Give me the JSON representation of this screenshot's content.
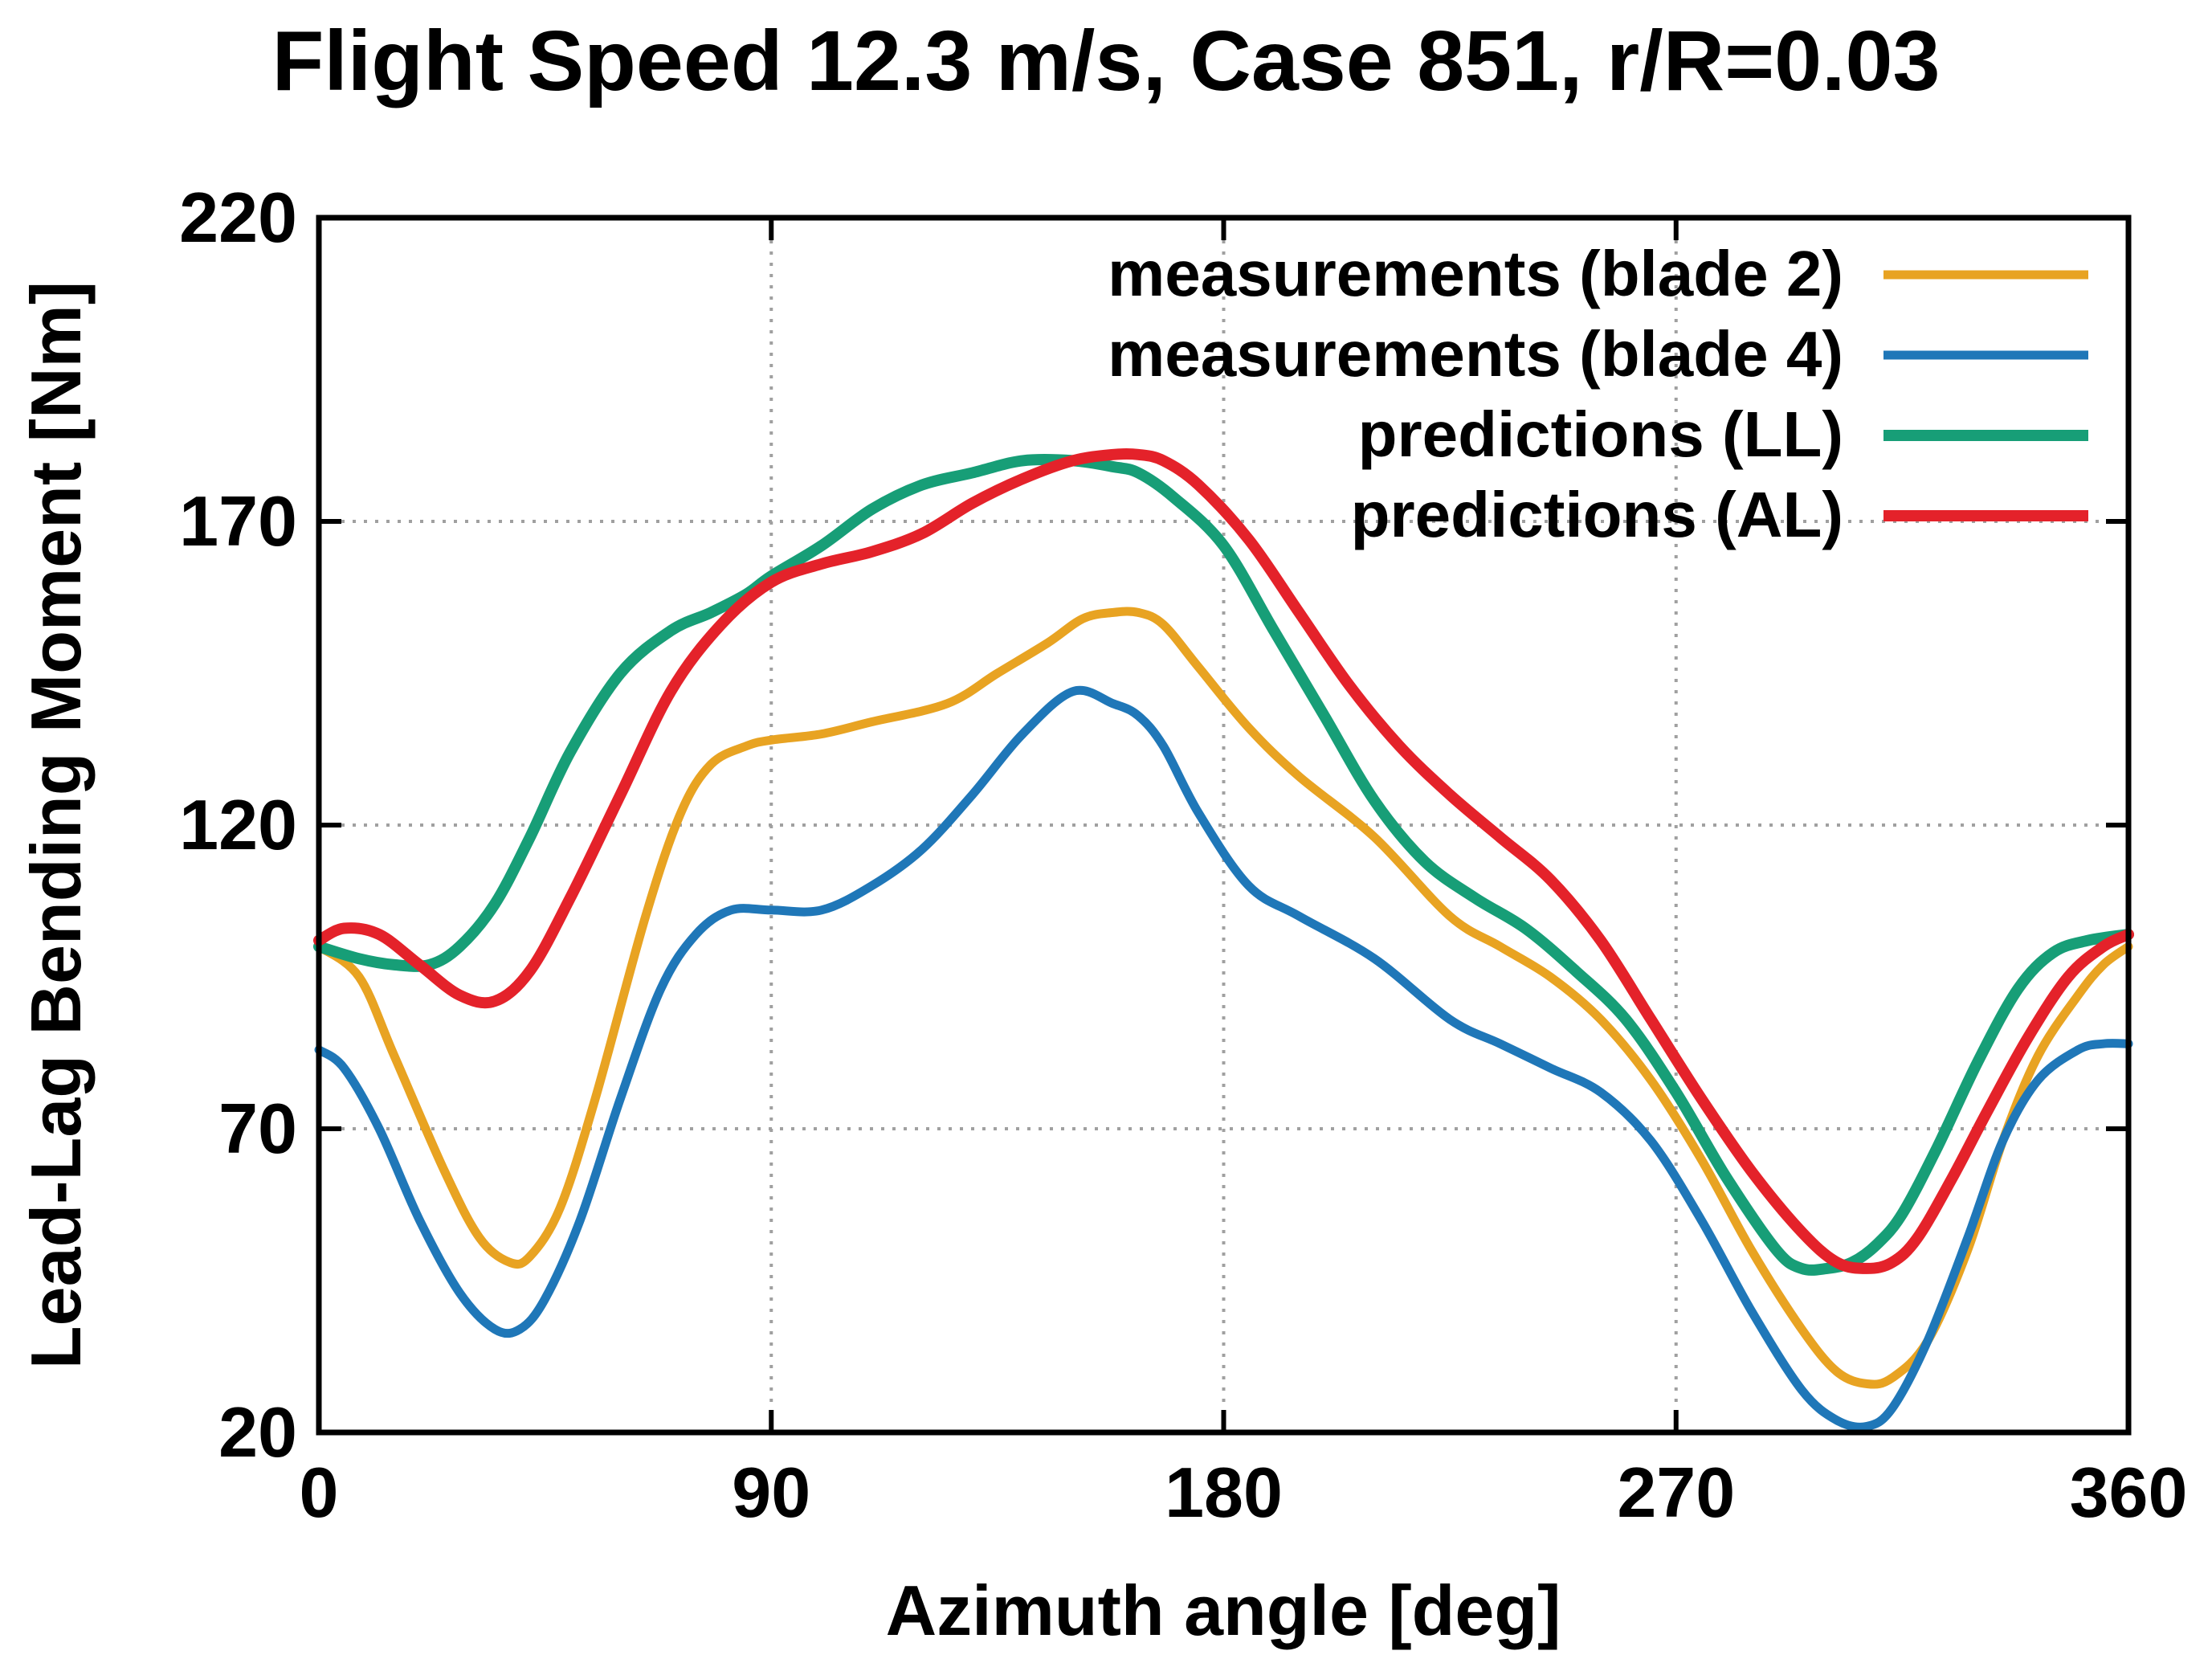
{
  "chart_data": {
    "type": "line",
    "title": "Flight Speed 12.3 m/s, Case 851, r/R=0.03",
    "xlabel": "Azimuth angle [deg]",
    "ylabel": "Lead-Lag Bending Moment [Nm]",
    "xlim": [
      0,
      360
    ],
    "ylim": [
      20,
      220
    ],
    "xticks": [
      0,
      90,
      180,
      270,
      360
    ],
    "yticks": [
      20,
      70,
      120,
      170,
      220
    ],
    "grid": true,
    "legend_position": "top-right",
    "series": [
      {
        "name": "measurements (blade 2)",
        "color": "#e8a322",
        "x": [
          0,
          8,
          15,
          25,
          32,
          38,
          42,
          48,
          55,
          65,
          72,
          78,
          85,
          90,
          100,
          110,
          125,
          135,
          145,
          152,
          158,
          163,
          168,
          175,
          185,
          195,
          210,
          225,
          235,
          245,
          255,
          265,
          275,
          285,
          295,
          302,
          308,
          313,
          320,
          328,
          335,
          342,
          350,
          355,
          360
        ],
        "values": [
          100,
          95,
          82,
          63,
          52,
          48,
          49,
          57,
          75,
          105,
          122,
          130,
          133,
          134,
          135,
          137,
          140,
          145,
          150,
          154,
          155,
          155,
          153,
          146,
          136,
          128,
          118,
          105,
          100,
          95,
          88,
          78,
          65,
          50,
          37,
          30,
          28,
          29,
          35,
          50,
          68,
          82,
          92,
          97,
          100
        ]
      },
      {
        "name": "measurements (blade 4)",
        "color": "#1f77b8",
        "x": [
          0,
          5,
          12,
          20,
          28,
          35,
          40,
          45,
          52,
          60,
          68,
          75,
          82,
          90,
          100,
          110,
          120,
          130,
          140,
          150,
          158,
          163,
          168,
          175,
          185,
          195,
          210,
          225,
          235,
          245,
          255,
          265,
          275,
          285,
          295,
          302,
          308,
          313,
          320,
          328,
          335,
          342,
          350,
          355,
          360
        ],
        "values": [
          83,
          80,
          70,
          55,
          43,
          37,
          37,
          42,
          55,
          75,
          93,
          102,
          106,
          106,
          106,
          110,
          116,
          125,
          135,
          142,
          140,
          138,
          133,
          122,
          110,
          105,
          98,
          88,
          84,
          80,
          76,
          68,
          55,
          40,
          27,
          22,
          21,
          24,
          35,
          52,
          68,
          78,
          83,
          84,
          84
        ]
      },
      {
        "name": "predictions (LL)",
        "color": "#179e77",
        "x": [
          0,
          8,
          15,
          22,
          28,
          35,
          42,
          50,
          60,
          70,
          78,
          85,
          90,
          100,
          110,
          120,
          130,
          140,
          150,
          158,
          163,
          170,
          180,
          190,
          200,
          210,
          220,
          230,
          240,
          250,
          260,
          270,
          280,
          290,
          295,
          300,
          305,
          310,
          315,
          322,
          330,
          338,
          345,
          352,
          360
        ],
        "values": [
          100,
          98,
          97,
          97,
          100,
          107,
          118,
          132,
          145,
          152,
          155,
          158,
          161,
          166,
          172,
          176,
          178,
          180,
          180,
          179,
          178,
          174,
          166,
          152,
          138,
          124,
          114,
          108,
          103,
          96,
          88,
          76,
          62,
          50,
          47,
          47,
          48,
          51,
          56,
          67,
          81,
          93,
          99,
          101,
          102
        ]
      },
      {
        "name": "predictions (AL)",
        "color": "#e4222a",
        "x": [
          0,
          5,
          12,
          20,
          28,
          35,
          42,
          50,
          60,
          70,
          80,
          90,
          100,
          110,
          120,
          130,
          140,
          150,
          158,
          163,
          168,
          175,
          185,
          195,
          205,
          215,
          225,
          235,
          245,
          255,
          265,
          275,
          285,
          295,
          302,
          308,
          313,
          318,
          325,
          332,
          340,
          348,
          355,
          360
        ],
        "values": [
          101,
          103,
          102,
          97,
          92,
          91,
          96,
          108,
          125,
          142,
          153,
          160,
          163,
          165,
          168,
          173,
          177,
          180,
          181,
          181,
          180,
          176,
          167,
          155,
          143,
          133,
          125,
          118,
          111,
          101,
          88,
          75,
          63,
          53,
          48,
          47,
          48,
          52,
          62,
          73,
          85,
          95,
          100,
          102
        ]
      }
    ]
  }
}
